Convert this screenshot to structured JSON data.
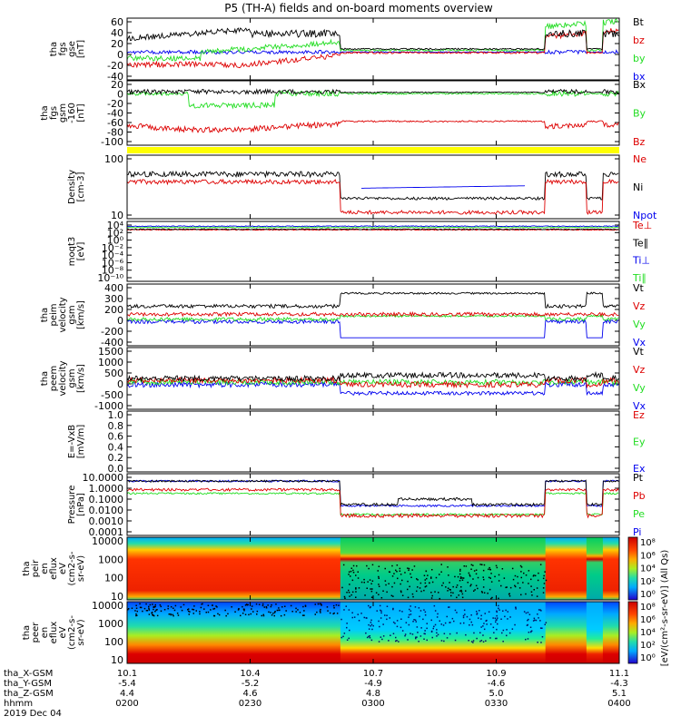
{
  "title": "P5 (TH-A) fields and on-board moments overview",
  "colors": {
    "black": "#000000",
    "red": "#dd0000",
    "green": "#22dd22",
    "blue": "#0000ee",
    "yellow": "#ffff00",
    "frame": "#000000"
  },
  "panels": [
    {
      "id": "fgs-gse",
      "ylabel": [
        "tha",
        "fgs",
        "gse",
        "[nT]"
      ],
      "ticks": [
        "60",
        "40",
        "20",
        "0",
        "-20",
        "-40"
      ],
      "legend": [
        "Bt",
        "bz",
        "by",
        "bx"
      ],
      "legend_colors": [
        "black",
        "red",
        "green",
        "blue"
      ]
    },
    {
      "id": "fgs-gsm",
      "ylabel": [
        "tha",
        "fgs",
        "gsm",
        "-160",
        "[nT]"
      ],
      "ticks": [
        "20",
        "0",
        "-20",
        "-40",
        "-60",
        "-80",
        "-100"
      ],
      "legend": [
        "Bx",
        "By",
        "Bz"
      ],
      "legend_colors": [
        "black",
        "green",
        "red"
      ]
    },
    {
      "id": "density",
      "ylabel": [
        "Density",
        "[cm-3]"
      ],
      "ticks": [
        "100",
        "10"
      ],
      "legend": [
        "Ne",
        "Ni",
        "Npot"
      ],
      "legend_colors": [
        "red",
        "black",
        "blue"
      ]
    },
    {
      "id": "temp",
      "ylabel": [
        "moqt3",
        "[eV]"
      ],
      "ticks": [
        "10⁴",
        "10²",
        "10⁰",
        "10⁻²",
        "10⁻⁴",
        "10⁻⁶",
        "10⁻⁸",
        "10⁻¹⁰"
      ],
      "legend": [
        "Te⊥",
        "Te∥",
        "Ti⊥",
        "Ti∥"
      ],
      "legend_colors": [
        "red",
        "black",
        "blue",
        "green"
      ]
    },
    {
      "id": "peim",
      "ylabel": [
        "tha",
        "peim",
        "velocity",
        "gsm",
        "[km/s]"
      ],
      "ticks": [
        "400",
        "300",
        "200",
        "0",
        "-200",
        "-400"
      ],
      "legend": [
        "Vt",
        "Vz",
        "Vy",
        "Vx"
      ],
      "legend_colors": [
        "black",
        "red",
        "green",
        "blue"
      ]
    },
    {
      "id": "peem",
      "ylabel": [
        "tha",
        "peem",
        "velocity",
        "gsm",
        "[km/s]"
      ],
      "ticks": [
        "1500",
        "1000",
        "500",
        "0",
        "-500",
        "-1000"
      ],
      "legend": [
        "Vt",
        "Vz",
        "Vy",
        "Vx"
      ],
      "legend_colors": [
        "black",
        "red",
        "green",
        "blue"
      ]
    },
    {
      "id": "efield",
      "ylabel": [
        "E=-VxB",
        "[mV/m]"
      ],
      "ticks": [
        "1.0",
        "0.8",
        "0.6",
        "0.4",
        "0.2",
        "0.0"
      ],
      "legend": [
        "Ez",
        "Ey",
        "Ex"
      ],
      "legend_colors": [
        "red",
        "green",
        "blue"
      ]
    },
    {
      "id": "pressure",
      "ylabel": [
        "Pressure",
        "[nPa]"
      ],
      "ticks": [
        "10.0000",
        "1.0000",
        "0.1000",
        "0.0100",
        "0.0010",
        "0.0001"
      ],
      "legend": [
        "Pt",
        "Pb",
        "Pe",
        "Pi"
      ],
      "legend_colors": [
        "black",
        "red",
        "green",
        "blue"
      ]
    },
    {
      "id": "peir",
      "ylabel": [
        "tha",
        "peir",
        "en",
        "eflux",
        "eV",
        "(cm2-s-",
        "sr-eV)"
      ],
      "ticks": [
        "10000",
        "1000",
        "100",
        "10"
      ]
    },
    {
      "id": "peer",
      "ylabel": [
        "tha",
        "peer",
        "en",
        "eflux",
        "eV",
        "(cm2-s-",
        "sr-eV)"
      ],
      "ticks": [
        "10000",
        "1000",
        "100",
        "10"
      ]
    }
  ],
  "colorbar": {
    "label": "[eV/(cm²-s-sr-eV)] (All Qs)",
    "ticks": [
      "10⁸",
      "10⁶",
      "10⁴",
      "10²",
      "10⁰"
    ]
  },
  "xaxis": {
    "rows": [
      {
        "label": "tha_X-GSM",
        "values": [
          "10.1",
          "10.4",
          "10.7",
          "10.9",
          "11.1"
        ]
      },
      {
        "label": "tha_Y-GSM",
        "values": [
          "-5.4",
          "-5.2",
          "-4.9",
          "-4.6",
          "-4.3"
        ]
      },
      {
        "label": "tha_Z-GSM",
        "values": [
          "4.4",
          "4.6",
          "4.8",
          "5.0",
          "5.1"
        ]
      },
      {
        "label": "hhmm",
        "values": [
          "0200",
          "0230",
          "0300",
          "0330",
          "0400"
        ]
      }
    ],
    "date": "2019 Dec 04"
  },
  "chart_data": {
    "type": "line",
    "title": "P5 (TH-A) fields and on-board moments overview",
    "x_ticks_hhmm": [
      "0200",
      "0230",
      "0300",
      "0330",
      "0400"
    ],
    "x_range_hhmm": [
      "0200",
      "0400"
    ],
    "date": "2019 Dec 04",
    "events": {
      "magnetopause_crossing": "0252",
      "re_entry": "0342",
      "second_excursion": "0352"
    },
    "panels": {
      "fgs_gse_nT": {
        "ylim": [
          -40,
          60
        ],
        "series": [
          {
            "name": "Bt",
            "values_by_time": {
              "0200": 30,
              "0230": 35,
              "0252": 40,
              "0300": 5,
              "0330": 5,
              "0342": 35,
              "0400": 35
            }
          },
          {
            "name": "bz",
            "values_by_time": {
              "0200": -20,
              "0230": -28,
              "0252": -5,
              "0300": 0,
              "0330": 0,
              "0342": -5,
              "0400": -10
            }
          },
          {
            "name": "by",
            "values_by_time": {
              "0200": -10,
              "0230": 5,
              "0252": 15,
              "0300": 3,
              "0330": 3,
              "0342": 0,
              "0400": 0
            }
          },
          {
            "name": "bx",
            "values_by_time": {
              "0200": 0,
              "0230": 0,
              "0252": 0,
              "0300": 0,
              "0330": 0,
              "0342": 0,
              "0400": 0
            }
          }
        ]
      },
      "fgs_gsm_nT": {
        "ylim": [
          -100,
          20
        ],
        "series": [
          {
            "name": "Bx",
            "values_by_time": {
              "0200": 10,
              "0230": 12,
              "0252": 15,
              "0300": 5,
              "0330": 3,
              "0342": 5,
              "0400": 10
            }
          },
          {
            "name": "By",
            "values_by_time": {
              "0200": 5,
              "0230": -15,
              "0252": 5,
              "0300": 3,
              "0330": 3,
              "0342": 5,
              "0400": 10
            }
          },
          {
            "name": "Bz",
            "values_by_time": {
              "0200": -70,
              "0230": -80,
              "0252": -70,
              "0300": -62,
              "0330": -55,
              "0342": -60,
              "0400": -60
            }
          }
        ]
      },
      "density_cm3": {
        "log": true,
        "series": [
          {
            "name": "Ni",
            "values_by_time": {
              "0200": 60,
              "0230": 60,
              "0252": 60,
              "0300": 10,
              "0330": 10,
              "0342": 60,
              "0400": 60
            }
          },
          {
            "name": "Ne",
            "values_by_time": {
              "0200": 35,
              "0230": 35,
              "0252": 40,
              "0300": 3,
              "0330": 3,
              "0342": 35,
              "0400": 35
            }
          },
          {
            "name": "Npot",
            "values_by_time": {
              "0305": 20,
              "0330": 22
            }
          }
        ]
      },
      "velocity_peim_kms": {
        "ylim": [
          -400,
          400
        ],
        "series": [
          {
            "name": "Vt",
            "values_by_time": {
              "0200": 100,
              "0252": 100,
              "0300": 300,
              "0340": 300,
              "0342": 100,
              "0400": 100
            }
          },
          {
            "name": "Vz",
            "values_by_time": {
              "0200": 30,
              "0300": 10,
              "0400": 30
            }
          },
          {
            "name": "Vy",
            "values_by_time": {
              "0200": -30,
              "0300": 0,
              "0400": -30
            }
          },
          {
            "name": "Vx",
            "values_by_time": {
              "0200": -80,
              "0252": -80,
              "0300": -300,
              "0340": -300,
              "0342": -80,
              "0400": -80
            }
          }
        ]
      },
      "pressure_nPa": {
        "log": true,
        "series": [
          {
            "name": "Pt",
            "values_by_time": {
              "0200": 1.0,
              "0252": 1.0,
              "0300": 0.03,
              "0330": 0.05,
              "0342": 1.0,
              "0400": 1.0
            }
          },
          {
            "name": "Pi",
            "values_by_time": {
              "0200": 1.2,
              "0252": 1.2,
              "0300": 0.03,
              "0342": 1.2,
              "0400": 1.2
            }
          },
          {
            "name": "Pb",
            "values_by_time": {
              "0200": 0.4,
              "0252": 0.5,
              "0300": 0.005,
              "0342": 0.4,
              "0400": 0.4
            }
          },
          {
            "name": "Pe",
            "values_by_time": {
              "0200": 0.25,
              "0252": 0.3,
              "0300": 0.01,
              "0342": 0.25,
              "0400": 0.25
            }
          }
        ]
      }
    }
  }
}
